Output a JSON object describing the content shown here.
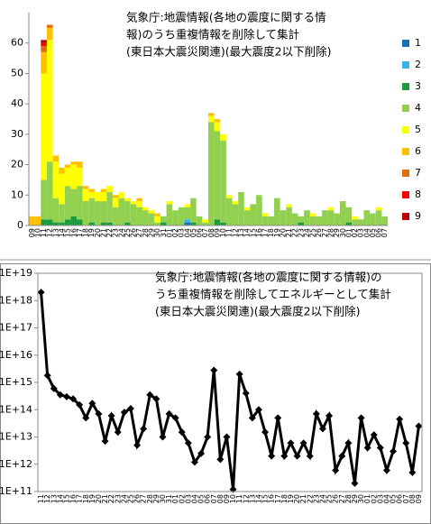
{
  "chart_data": [
    {
      "type": "bar",
      "stacked": true,
      "title": [
        "気象庁:地震情報(各地の震度に関する情",
        "報)のうち重複情報を削除して集計",
        "(東日本大震災関連)(最大震度2以下削除)"
      ],
      "categories": [
        "09",
        "10",
        "11",
        "12",
        "13",
        "14",
        "15",
        "16",
        "17",
        "18",
        "19",
        "20",
        "21",
        "22",
        "23",
        "24",
        "25",
        "26",
        "27",
        "28",
        "29",
        "30",
        "31",
        "01",
        "02",
        "03",
        "04",
        "05",
        "06",
        "07",
        "08",
        "09",
        "10",
        "11",
        "12",
        "13",
        "14",
        "15",
        "16",
        "17",
        "18",
        "19",
        "20",
        "21",
        "22",
        "23",
        "24",
        "25",
        "26",
        "27",
        "28",
        "29",
        "30",
        "01",
        "02",
        "03",
        "04",
        "05",
        "06",
        "07"
      ],
      "series": [
        {
          "name": "1",
          "color": "#1f6fb5",
          "values": [
            0,
            0,
            0,
            0,
            0,
            0,
            0,
            0,
            0,
            0,
            0,
            0,
            0,
            0,
            0,
            0,
            0,
            0,
            0,
            0,
            0,
            0,
            0,
            0,
            0,
            0,
            1,
            0,
            0,
            0,
            0,
            0,
            0,
            0,
            0,
            0,
            0,
            0,
            0,
            0,
            0,
            0,
            0,
            0,
            0,
            0,
            0,
            0,
            0,
            0,
            0,
            0,
            0,
            0,
            0,
            0,
            0,
            0,
            0,
            0
          ]
        },
        {
          "name": "2",
          "color": "#33b5e5",
          "values": [
            0,
            0,
            0,
            0,
            0,
            0,
            0,
            0,
            0,
            0,
            0,
            0,
            0,
            0,
            0,
            0,
            0,
            0,
            0,
            0,
            0,
            0,
            0,
            0,
            0,
            0,
            1,
            0,
            0,
            0,
            0,
            0,
            0,
            0,
            0,
            0,
            0,
            0,
            0,
            0,
            0,
            0,
            0,
            0,
            0,
            0,
            0,
            0,
            0,
            0,
            0,
            0,
            0,
            0,
            0,
            0,
            0,
            0,
            0,
            0
          ]
        },
        {
          "name": "3",
          "color": "#1e9b3e",
          "values": [
            0,
            0,
            2,
            2,
            1,
            1,
            2,
            3,
            2,
            0,
            1,
            0,
            1,
            1,
            0,
            0,
            1,
            0,
            0,
            0,
            0,
            0,
            1,
            0,
            0,
            0,
            0,
            1,
            0,
            0,
            0,
            2,
            1,
            0,
            0,
            0,
            0,
            0,
            0,
            0,
            0,
            0,
            0,
            0,
            0,
            1,
            0,
            0,
            0,
            0,
            0,
            0,
            0,
            1,
            0,
            0,
            0,
            0,
            0,
            0
          ]
        },
        {
          "name": "4",
          "color": "#92d050",
          "values": [
            0,
            0,
            13,
            19,
            8,
            6,
            11,
            9,
            11,
            8,
            8,
            8,
            7,
            10,
            6,
            9,
            7,
            7,
            6,
            5,
            4,
            1,
            2,
            7,
            5,
            6,
            4,
            8,
            3,
            1,
            34,
            29,
            27,
            9,
            7,
            11,
            5,
            7,
            10,
            3,
            3,
            9,
            5,
            6,
            4,
            2,
            5,
            3,
            3,
            5,
            5,
            4,
            8,
            5,
            2,
            2,
            5,
            4,
            5,
            3
          ]
        },
        {
          "name": "5",
          "color": "#ffff00",
          "values": [
            0,
            0,
            35,
            40,
            12,
            10,
            6,
            8,
            6,
            4,
            2,
            3,
            3,
            2,
            3,
            2,
            1,
            1,
            2,
            1,
            1,
            2,
            0,
            1,
            0,
            0,
            1,
            0,
            0,
            1,
            2,
            3,
            2,
            1,
            1,
            0,
            1,
            0,
            0,
            1,
            0,
            0,
            0,
            1,
            0,
            0,
            0,
            1,
            0,
            0,
            1,
            0,
            0,
            0,
            1,
            0,
            0,
            0,
            1,
            0
          ]
        },
        {
          "name": "6",
          "color": "#ffc000",
          "values": [
            3,
            3,
            7,
            4,
            2,
            2,
            1,
            1,
            2,
            1,
            1,
            0,
            1,
            0,
            1,
            0,
            0,
            0,
            1,
            0,
            0,
            1,
            0,
            0,
            0,
            0,
            0,
            0,
            0,
            0,
            1,
            1,
            0,
            0,
            0,
            0,
            0,
            0,
            0,
            0,
            0,
            0,
            0,
            0,
            0,
            0,
            0,
            0,
            0,
            0,
            0,
            0,
            0,
            0,
            0,
            0,
            0,
            0,
            0,
            0
          ]
        },
        {
          "name": "7",
          "color": "#e46c0a",
          "values": [
            0,
            0,
            2,
            1,
            0,
            0,
            0,
            0,
            0,
            0,
            0,
            0,
            0,
            0,
            0,
            0,
            0,
            0,
            0,
            0,
            0,
            0,
            0,
            0,
            0,
            0,
            0,
            0,
            0,
            0,
            0,
            0,
            0,
            0,
            0,
            0,
            0,
            0,
            0,
            0,
            0,
            0,
            0,
            0,
            0,
            0,
            0,
            0,
            0,
            0,
            0,
            0,
            0,
            0,
            0,
            0,
            0,
            0,
            0,
            0
          ]
        },
        {
          "name": "8",
          "color": "#ff0000",
          "values": [
            0,
            0,
            1,
            0,
            0,
            0,
            0,
            0,
            0,
            0,
            0,
            0,
            0,
            0,
            0,
            0,
            0,
            0,
            0,
            0,
            0,
            0,
            0,
            0,
            0,
            0,
            0,
            0,
            0,
            0,
            0,
            0,
            0,
            0,
            0,
            0,
            0,
            0,
            0,
            0,
            0,
            0,
            0,
            0,
            0,
            0,
            0,
            0,
            0,
            0,
            0,
            0,
            0,
            0,
            0,
            0,
            0,
            0,
            0,
            0
          ]
        },
        {
          "name": "9",
          "color": "#c00000",
          "values": [
            0,
            0,
            1,
            0,
            0,
            0,
            0,
            0,
            0,
            0,
            0,
            0,
            0,
            0,
            0,
            0,
            0,
            0,
            0,
            0,
            0,
            0,
            0,
            0,
            0,
            0,
            0,
            0,
            0,
            0,
            0,
            0,
            0,
            0,
            0,
            0,
            0,
            0,
            0,
            0,
            0,
            0,
            0,
            0,
            0,
            0,
            0,
            0,
            0,
            0,
            0,
            0,
            0,
            0,
            0,
            0,
            0,
            0,
            0,
            0
          ]
        }
      ],
      "ylim": [
        0,
        70
      ],
      "yticks": [
        0,
        10,
        20,
        30,
        40,
        50,
        60
      ],
      "legend": "right"
    },
    {
      "type": "line",
      "log_scale": true,
      "color": "#000000",
      "title": [
        "気象庁:地震情報(各地の震度に関する情報)の",
        "うち重複情報を削除してエネルギーとして集計",
        "(東日本大震災関連)(最大震度2以下削除)"
      ],
      "categories": [
        "11",
        "12",
        "13",
        "14",
        "15",
        "16",
        "17",
        "18",
        "19",
        "20",
        "21",
        "22",
        "23",
        "24",
        "25",
        "26",
        "27",
        "28",
        "29",
        "30",
        "31",
        "01",
        "02",
        "03",
        "04",
        "05",
        "06",
        "07",
        "08",
        "09",
        "10",
        "11",
        "12",
        "13",
        "14",
        "15",
        "16",
        "17",
        "18",
        "19",
        "20",
        "21",
        "22",
        "23",
        "24",
        "25",
        "26",
        "27",
        "28",
        "29",
        "30",
        "01",
        "02",
        "03",
        "04",
        "05",
        "06",
        "07",
        "08",
        "09"
      ],
      "values": [
        2e+18,
        1800000000000000.0,
        600000000000000.0,
        350000000000000.0,
        300000000000000.0,
        250000000000000.0,
        150000000000000.0,
        50000000000000.0,
        170000000000000.0,
        70000000000000.0,
        7000000000000.0,
        60000000000000.0,
        15000000000000.0,
        80000000000000.0,
        110000000000000.0,
        5000000000000.0,
        20000000000000.0,
        350000000000000.0,
        250000000000000.0,
        10000000000000.0,
        70000000000000.0,
        50000000000000.0,
        15000000000000.0,
        6000000000000.0,
        1200000000000.0,
        2500000000000.0,
        10000000000000.0,
        2800000000000000.0,
        1500000000000.0,
        10000000000000.0,
        120000000000.0,
        2000000000000000.0,
        400000000000000.0,
        50000000000000.0,
        100000000000000.0,
        15000000000000.0,
        2000000000000.0,
        50000000000000.0,
        2000000000000.0,
        6000000000000.0,
        2000000000000.0,
        6000000000000.0,
        2000000000000.0,
        70000000000000.0,
        20000000000000.0,
        60000000000000.0,
        600000000000.0,
        2000000000000.0,
        6000000000000.0,
        200000000000.0,
        50000000000000.0,
        4000000000000.0,
        12000000000000.0,
        4000000000000.0,
        600000000000.0,
        3000000000000.0,
        45000000000000.0,
        6000000000000.0,
        500000000000.0,
        25000000000000.0
      ],
      "ylim": [
        100000000000.0,
        1e+19
      ],
      "yticks": [
        {
          "value": 100000000000.0,
          "label": "1E+11"
        },
        {
          "value": 1000000000000.0,
          "label": "1E+12"
        },
        {
          "value": 10000000000000.0,
          "label": "1E+13"
        },
        {
          "value": 100000000000000.0,
          "label": "1E+14"
        },
        {
          "value": 1000000000000000.0,
          "label": "1E+15"
        },
        {
          "value": 1e+16,
          "label": "1E+16"
        },
        {
          "value": 1e+17,
          "label": "1E+17"
        },
        {
          "value": 1e+18,
          "label": "1E+18"
        },
        {
          "value": 1e+19,
          "label": "1E+19"
        }
      ]
    }
  ]
}
